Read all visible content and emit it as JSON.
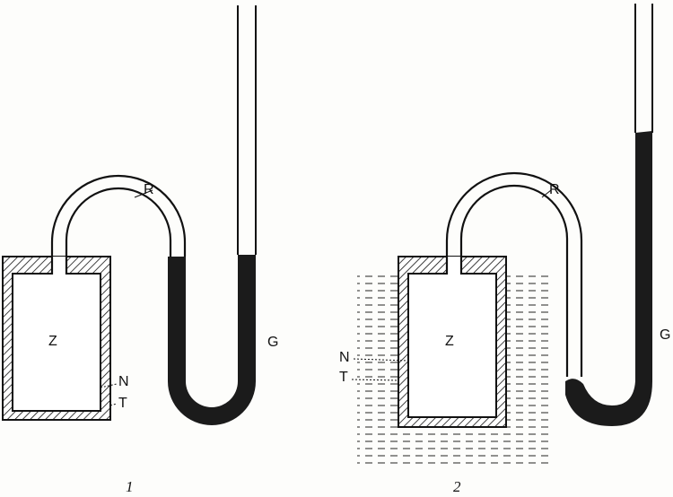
{
  "figures": [
    {
      "number": "1",
      "labels": {
        "container": "Z",
        "tube": "R",
        "gauge": "G",
        "inner_wall": "N",
        "outer_wall": "T"
      }
    },
    {
      "number": "2",
      "labels": {
        "container": "Z",
        "tube": "R",
        "gauge": "G",
        "inner_wall": "N",
        "outer_wall": "T"
      }
    }
  ],
  "colors": {
    "ink": "#111111",
    "liquid": "#1b1b1b",
    "paper": "#fdfdfb"
  }
}
